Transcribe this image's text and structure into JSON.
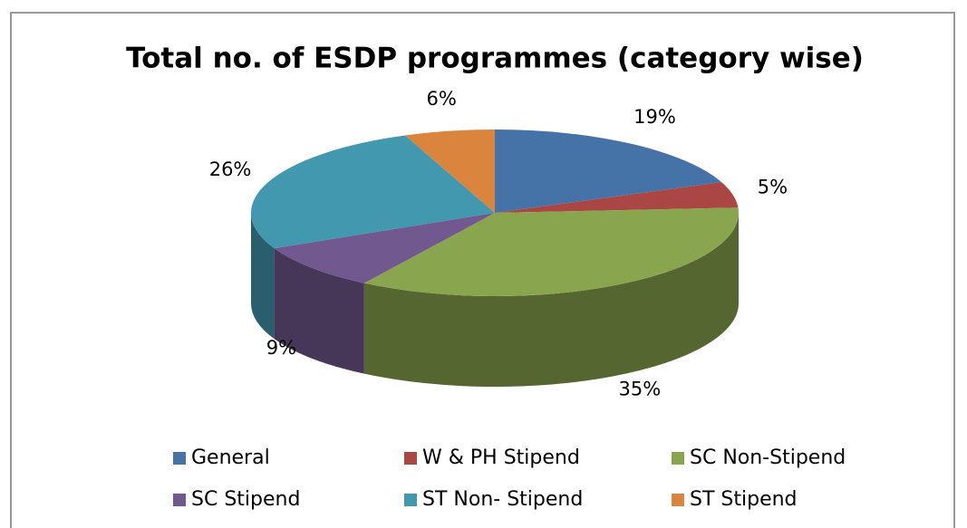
{
  "chart_data": {
    "type": "pie",
    "title": "Total no. of ESDP programmes (category wise)",
    "categories": [
      "General",
      "W & PH Stipend",
      "SC Non-Stipend",
      "SC Stipend",
      "ST Non- Stipend",
      "ST Stipend"
    ],
    "values": [
      19,
      5,
      35,
      9,
      26,
      6
    ],
    "value_labels": [
      "19%",
      "5%",
      "35%",
      "9%",
      "26%",
      "6%"
    ],
    "colors": [
      "#4572a7",
      "#aa4643",
      "#89a54e",
      "#71588f",
      "#4198af",
      "#db843d"
    ],
    "legend": "bottom"
  }
}
